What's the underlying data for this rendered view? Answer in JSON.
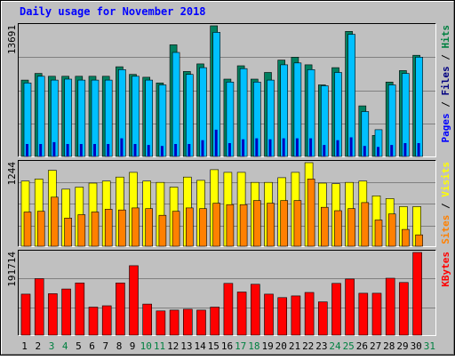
{
  "chart_data": [
    {
      "type": "bar",
      "title": "Daily usage for November 2018",
      "panel": "hits",
      "ylabel_max": "13691",
      "ymax": 13691,
      "ylim": [
        0,
        13691
      ],
      "legend": [
        {
          "label": "Pages",
          "color": "#0000ff"
        },
        {
          "label": "Files",
          "color": "#000080"
        },
        {
          "label": "Hits",
          "color": "#008040"
        }
      ],
      "legend_separator": " / ",
      "categories": [
        "1",
        "2",
        "3",
        "4",
        "5",
        "6",
        "7",
        "8",
        "9",
        "10",
        "11",
        "12",
        "13",
        "14",
        "15",
        "16",
        "17",
        "18",
        "19",
        "20",
        "21",
        "22",
        "23",
        "24",
        "25",
        "26",
        "27",
        "28",
        "29",
        "30",
        "31"
      ],
      "series": [
        {
          "name": "Hits",
          "color": "#008060",
          "values": [
            8000,
            8700,
            8400,
            8400,
            8400,
            8400,
            8400,
            9400,
            8600,
            8300,
            7700,
            11700,
            8900,
            9700,
            13691,
            8100,
            9500,
            8100,
            8800,
            10100,
            10400,
            9600,
            7500,
            9300,
            13100,
            5300,
            2200,
            7800,
            9000,
            10600,
            null
          ]
        },
        {
          "name": "Files",
          "color": "#00c0ff",
          "values": [
            7700,
            8400,
            8000,
            8100,
            8000,
            8000,
            8000,
            9100,
            8400,
            8000,
            7500,
            10900,
            8600,
            9300,
            13000,
            7800,
            9200,
            7800,
            8000,
            9600,
            9800,
            9100,
            7400,
            8800,
            12800,
            4700,
            2800,
            7500,
            8700,
            10400,
            null
          ]
        },
        {
          "name": "Pages",
          "color": "#0000c0",
          "values": [
            1300,
            1300,
            1500,
            1300,
            1300,
            1300,
            1300,
            1900,
            1300,
            1200,
            1100,
            1300,
            1300,
            1700,
            2800,
            1400,
            1800,
            1900,
            1800,
            1900,
            1900,
            1900,
            1200,
            1700,
            2000,
            1100,
            1000,
            1200,
            1400,
            1400,
            null
          ]
        }
      ]
    },
    {
      "type": "bar",
      "panel": "visits",
      "ylabel_max": "1244",
      "ymax": 1244,
      "ylim": [
        0,
        1244
      ],
      "legend": [
        {
          "label": "Sites",
          "color": "#ff8000"
        },
        {
          "label": "Visits",
          "color": "#ffff00"
        }
      ],
      "legend_separator": " / ",
      "categories": [
        "1",
        "2",
        "3",
        "4",
        "5",
        "6",
        "7",
        "8",
        "9",
        "10",
        "11",
        "12",
        "13",
        "14",
        "15",
        "16",
        "17",
        "18",
        "19",
        "20",
        "21",
        "22",
        "23",
        "24",
        "25",
        "26",
        "27",
        "28",
        "29",
        "30",
        "31"
      ],
      "series": [
        {
          "name": "Visits",
          "color": "#ffff00",
          "values": [
            970,
            1000,
            1130,
            850,
            880,
            940,
            970,
            1030,
            1100,
            970,
            950,
            880,
            1030,
            980,
            1140,
            1100,
            1100,
            950,
            950,
            1020,
            1100,
            1244,
            940,
            930,
            950,
            970,
            750,
            710,
            590,
            590,
            null
          ]
        },
        {
          "name": "Sites",
          "color": "#ff8000",
          "values": [
            510,
            520,
            730,
            420,
            470,
            510,
            550,
            540,
            570,
            560,
            460,
            520,
            570,
            560,
            640,
            620,
            620,
            680,
            640,
            680,
            680,
            1000,
            580,
            530,
            560,
            650,
            390,
            480,
            250,
            170,
            null
          ]
        }
      ]
    },
    {
      "type": "bar",
      "panel": "kbytes",
      "ylabel_max": "191714",
      "ymax": 191714,
      "ylim": [
        0,
        191714
      ],
      "legend": [
        {
          "label": "KBytes",
          "color": "#ff0000"
        }
      ],
      "legend_separator": "",
      "categories": [
        "1",
        "2",
        "3",
        "4",
        "5",
        "6",
        "7",
        "8",
        "9",
        "10",
        "11",
        "12",
        "13",
        "14",
        "15",
        "16",
        "17",
        "18",
        "19",
        "20",
        "21",
        "22",
        "23",
        "24",
        "25",
        "26",
        "27",
        "28",
        "29",
        "30",
        "31"
      ],
      "series": [
        {
          "name": "KBytes",
          "color": "#ff0000",
          "values": [
            95000,
            131000,
            96000,
            107000,
            121000,
            65000,
            68000,
            121000,
            161000,
            72000,
            56000,
            58000,
            60000,
            58000,
            65000,
            120000,
            100000,
            118000,
            95000,
            87000,
            91000,
            99000,
            77000,
            120000,
            130000,
            97000,
            97000,
            132000,
            122000,
            191714,
            null
          ]
        }
      ]
    }
  ],
  "x_labels": [
    {
      "text": "1",
      "weekend": false
    },
    {
      "text": "2",
      "weekend": false
    },
    {
      "text": "3",
      "weekend": true
    },
    {
      "text": "4",
      "weekend": true
    },
    {
      "text": "5",
      "weekend": false
    },
    {
      "text": "6",
      "weekend": false
    },
    {
      "text": "7",
      "weekend": false
    },
    {
      "text": "8",
      "weekend": false
    },
    {
      "text": "9",
      "weekend": false
    },
    {
      "text": "10",
      "weekend": true
    },
    {
      "text": "11",
      "weekend": true
    },
    {
      "text": "12",
      "weekend": false
    },
    {
      "text": "13",
      "weekend": false
    },
    {
      "text": "14",
      "weekend": false
    },
    {
      "text": "15",
      "weekend": false
    },
    {
      "text": "16",
      "weekend": false
    },
    {
      "text": "17",
      "weekend": true
    },
    {
      "text": "18",
      "weekend": true
    },
    {
      "text": "19",
      "weekend": false
    },
    {
      "text": "20",
      "weekend": false
    },
    {
      "text": "21",
      "weekend": false
    },
    {
      "text": "22",
      "weekend": false
    },
    {
      "text": "23",
      "weekend": false
    },
    {
      "text": "24",
      "weekend": true
    },
    {
      "text": "25",
      "weekend": true
    },
    {
      "text": "26",
      "weekend": false
    },
    {
      "text": "27",
      "weekend": false
    },
    {
      "text": "28",
      "weekend": false
    },
    {
      "text": "29",
      "weekend": false
    },
    {
      "text": "30",
      "weekend": false
    },
    {
      "text": "31",
      "weekend": true
    }
  ],
  "colors": {
    "background": "#c0c0c0",
    "plot_background": "#c0c0c0",
    "title": "#0000ff",
    "weekday_label": "#000000",
    "weekend_label": "#008040",
    "axis_label": "#000000",
    "grid": "#808080"
  }
}
